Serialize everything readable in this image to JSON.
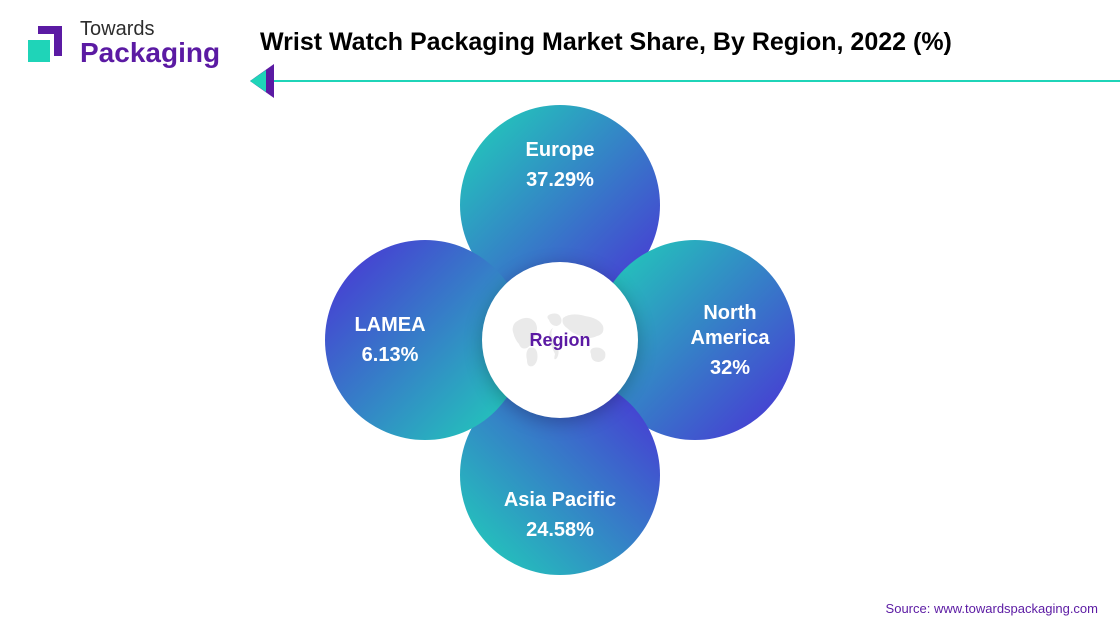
{
  "logo": {
    "line1": "Towards",
    "line2": "Packaging",
    "line1_color": "#2d2d2d",
    "line2_color": "#5b1aa3",
    "square_color": "#1fd4b8",
    "bracket_color": "#5b1aa3"
  },
  "title": "Wrist Watch Packaging Market Share, By Region, 2022 (%)",
  "divider": {
    "color": "#1fd4b8",
    "chevron_outer": "#5b1aa3",
    "chevron_inner": "#1fd4b8"
  },
  "chart": {
    "type": "infographic",
    "center_label": "Region",
    "center_label_color": "#5b1aa3",
    "center_bg": "#ffffff",
    "map_color": "#d9d9d9",
    "petal_gradient_start": "#1fd4b8",
    "petal_gradient_end": "#4b2ed6",
    "text_color": "#ffffff",
    "label_fontsize": 20,
    "value_fontsize": 20,
    "regions": {
      "top": {
        "label": "Europe",
        "value": "37.29%"
      },
      "right": {
        "label": "North\nAmerica",
        "value": "32%"
      },
      "bottom": {
        "label": "Asia Pacific",
        "value": "24.58%"
      },
      "left": {
        "label": "LAMEA",
        "value": "6.13%"
      }
    }
  },
  "source": {
    "prefix": "Source: ",
    "url": "www.towardspackaging.com",
    "prefix_color": "#5b1aa3",
    "url_color": "#5b1aa3"
  }
}
